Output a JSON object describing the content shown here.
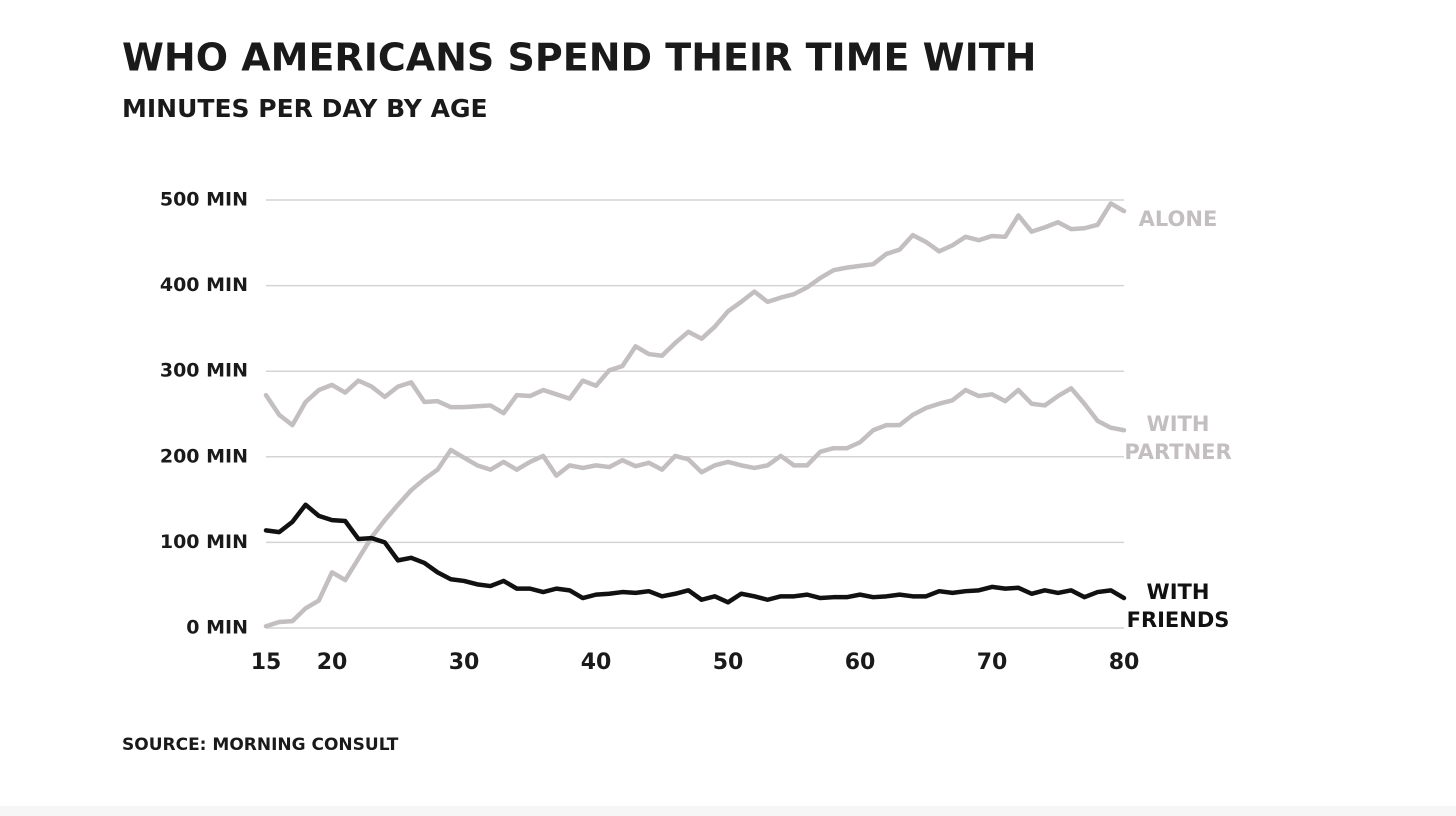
{
  "chart_data": {
    "type": "line",
    "title": "WHO AMERICANS SPEND THEIR TIME WITH",
    "subtitle": "MINUTES PER DAY BY AGE",
    "source": "SOURCE: MORNING CONSULT",
    "x": [
      15,
      16,
      17,
      18,
      19,
      20,
      21,
      22,
      23,
      24,
      25,
      26,
      27,
      28,
      29,
      30,
      31,
      32,
      33,
      34,
      35,
      36,
      37,
      38,
      39,
      40,
      41,
      42,
      43,
      44,
      45,
      46,
      47,
      48,
      49,
      50,
      51,
      52,
      53,
      54,
      55,
      56,
      57,
      58,
      59,
      60,
      61,
      62,
      63,
      64,
      65,
      66,
      67,
      68,
      69,
      70,
      71,
      72,
      73,
      74,
      75,
      76,
      77,
      78,
      79,
      80
    ],
    "xlim": [
      15,
      80
    ],
    "xticks": [
      15,
      20,
      30,
      40,
      50,
      60,
      70,
      80
    ],
    "ylim": [
      0,
      500
    ],
    "yticks": [
      {
        "value": 0,
        "label": "0 MIN"
      },
      {
        "value": 100,
        "label": "100 MIN"
      },
      {
        "value": 200,
        "label": "200 MIN"
      },
      {
        "value": 300,
        "label": "300 MIN"
      },
      {
        "value": 400,
        "label": "400 MIN"
      },
      {
        "value": 500,
        "label": "500 MIN"
      }
    ],
    "grid": true,
    "series": [
      {
        "name": "ALONE",
        "color": "#c3bfc1",
        "values": [
          272,
          249,
          237,
          264,
          278,
          284,
          275,
          289,
          282,
          270,
          282,
          287,
          264,
          265,
          258,
          258,
          259,
          260,
          251,
          272,
          271,
          278,
          273,
          268,
          289,
          283,
          301,
          306,
          329,
          320,
          318,
          333,
          346,
          338,
          352,
          370,
          381,
          393,
          381,
          386,
          390,
          398,
          409,
          418,
          421,
          423,
          425,
          437,
          442,
          459,
          451,
          440,
          447,
          457,
          453,
          458,
          457,
          482,
          463,
          468,
          474,
          466,
          467,
          471,
          496,
          487
        ]
      },
      {
        "name": "WITH PARTNER",
        "color": "#c3bfc1",
        "values": [
          2,
          7,
          8,
          23,
          32,
          65,
          56,
          81,
          106,
          126,
          144,
          161,
          174,
          185,
          208,
          199,
          190,
          185,
          194,
          185,
          194,
          201,
          178,
          190,
          187,
          190,
          188,
          196,
          189,
          193,
          185,
          201,
          197,
          182,
          190,
          194,
          190,
          187,
          190,
          201,
          190,
          190,
          206,
          210,
          210,
          217,
          231,
          237,
          237,
          249,
          257,
          262,
          266,
          278,
          271,
          273,
          265,
          278,
          262,
          260,
          271,
          280,
          262,
          242,
          234,
          231
        ]
      },
      {
        "name": "WITH FRIENDS",
        "color": "#111111",
        "values": [
          114,
          112,
          124,
          144,
          131,
          126,
          125,
          104,
          105,
          100,
          79,
          82,
          76,
          65,
          57,
          55,
          51,
          49,
          55,
          46,
          46,
          42,
          46,
          44,
          35,
          39,
          40,
          42,
          41,
          43,
          37,
          40,
          44,
          33,
          37,
          30,
          40,
          37,
          33,
          37,
          37,
          39,
          35,
          36,
          36,
          39,
          36,
          37,
          39,
          37,
          37,
          43,
          41,
          43,
          44,
          48,
          46,
          47,
          40,
          44,
          41,
          44,
          36,
          42,
          44,
          35
        ]
      }
    ]
  }
}
